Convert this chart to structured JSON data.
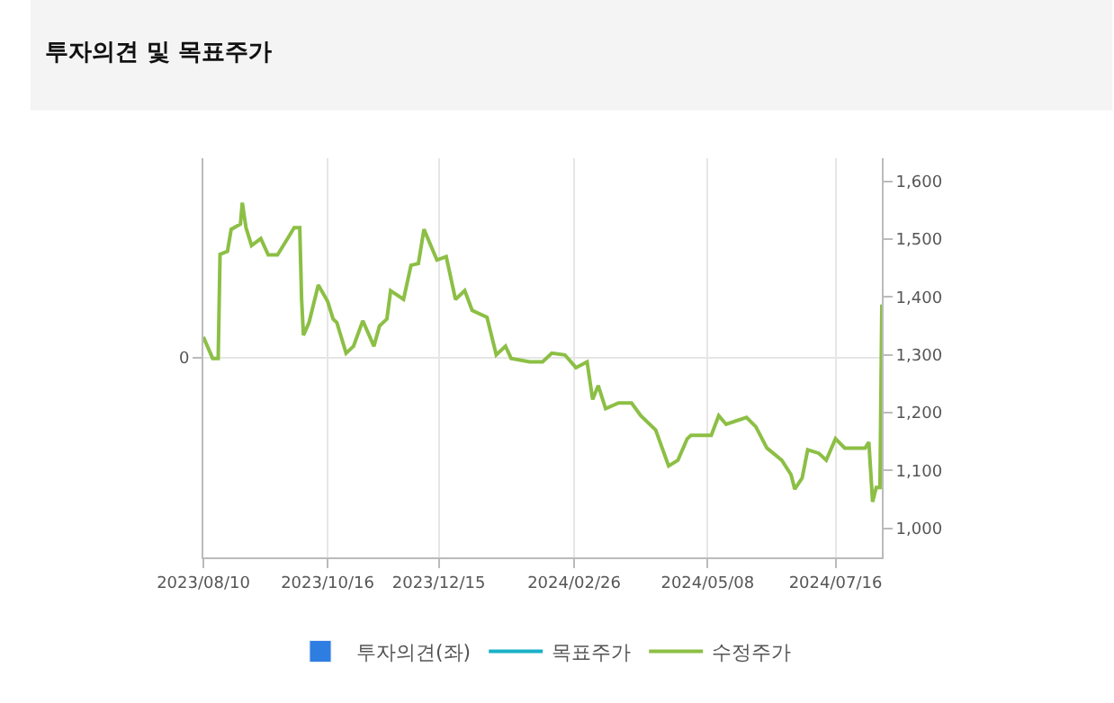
{
  "chart_data": {
    "type": "line",
    "title": "투자의견 및 목표주가",
    "xlim": [
      "2023-08-10",
      "2024-08-10"
    ],
    "xticks": [
      {
        "value": "2023-08-10",
        "label": "2023/08/10"
      },
      {
        "value": "2023-10-16",
        "label": "2023/10/16"
      },
      {
        "value": "2023-12-15",
        "label": "2023/12/15"
      },
      {
        "value": "2024-02-26",
        "label": "2024/02/26"
      },
      {
        "value": "2024-05-08",
        "label": "2024/05/08"
      },
      {
        "value": "2024-07-16",
        "label": "2024/07/16"
      }
    ],
    "annotations": [
      "0"
    ],
    "y2lim": [
      950,
      1640
    ],
    "y2ticks": [
      {
        "value": 1000,
        "label": "1,000"
      },
      {
        "value": 1100,
        "label": "1,100"
      },
      {
        "value": 1200,
        "label": "1,200"
      },
      {
        "value": 1300,
        "label": "1,300"
      },
      {
        "value": 1400,
        "label": "1,400"
      },
      {
        "value": 1500,
        "label": "1,500"
      },
      {
        "value": 1600,
        "label": "1,600"
      }
    ],
    "grid": true,
    "legend": "bottom",
    "marker": "none",
    "line_style": "solid",
    "series": [
      {
        "name": "투자의견(좌)",
        "type": "bar",
        "color": "#2e7de1"
      },
      {
        "name": "목표주가",
        "axis": "y2",
        "color": "#1ab0c8"
      },
      {
        "name": "수정주가",
        "axis": "y2",
        "color": "#8cbf45",
        "x": [
          "2023-08-10",
          "2023-08-15",
          "2023-08-18",
          "2023-08-19",
          "2023-08-23",
          "2023-08-25",
          "2023-08-30",
          "2023-08-31",
          "2023-09-02",
          "2023-09-05",
          "2023-09-10",
          "2023-09-14",
          "2023-09-19",
          "2023-09-25",
          "2023-09-28",
          "2023-10-01",
          "2023-10-02",
          "2023-10-03",
          "2023-10-06",
          "2023-10-11",
          "2023-10-16",
          "2023-10-19",
          "2023-10-21",
          "2023-10-26",
          "2023-10-30",
          "2023-11-04",
          "2023-11-10",
          "2023-11-13",
          "2023-11-17",
          "2023-11-19",
          "2023-11-26",
          "2023-11-30",
          "2023-12-04",
          "2023-12-07",
          "2023-12-14",
          "2023-12-19",
          "2023-12-24",
          "2023-12-29",
          "2024-01-02",
          "2024-01-10",
          "2024-01-15",
          "2024-01-20",
          "2024-01-23",
          "2024-02-02",
          "2024-02-09",
          "2024-02-14",
          "2024-02-21",
          "2024-02-27",
          "2024-03-04",
          "2024-03-07",
          "2024-03-10",
          "2024-03-14",
          "2024-03-21",
          "2024-03-28",
          "2024-04-02",
          "2024-04-10",
          "2024-04-17",
          "2024-04-22",
          "2024-04-27",
          "2024-04-29",
          "2024-05-10",
          "2024-05-14",
          "2024-05-18",
          "2024-05-29",
          "2024-06-03",
          "2024-06-09",
          "2024-06-17",
          "2024-06-22",
          "2024-06-24",
          "2024-06-28",
          "2024-07-01",
          "2024-07-07",
          "2024-07-11",
          "2024-07-16",
          "2024-07-21",
          "2024-08-01",
          "2024-08-03",
          "2024-08-05",
          "2024-08-07",
          "2024-08-09",
          "2024-08-10"
        ],
        "values": [
          1331,
          1294,
          1294,
          1474,
          1479,
          1517,
          1526,
          1563,
          1520,
          1489,
          1501,
          1473,
          1473,
          1504,
          1520,
          1520,
          1396,
          1334,
          1356,
          1421,
          1393,
          1362,
          1356,
          1303,
          1315,
          1359,
          1315,
          1350,
          1362,
          1411,
          1396,
          1455,
          1458,
          1517,
          1464,
          1470,
          1396,
          1411,
          1377,
          1365,
          1300,
          1315,
          1294,
          1288,
          1288,
          1303,
          1300,
          1278,
          1288,
          1223,
          1247,
          1207,
          1217,
          1217,
          1195,
          1170,
          1108,
          1118,
          1155,
          1161,
          1161,
          1195,
          1180,
          1192,
          1176,
          1139,
          1118,
          1093,
          1068,
          1087,
          1136,
          1130,
          1118,
          1155,
          1139,
          1139,
          1149,
          1046,
          1071,
          1071,
          1387
        ]
      }
    ]
  }
}
